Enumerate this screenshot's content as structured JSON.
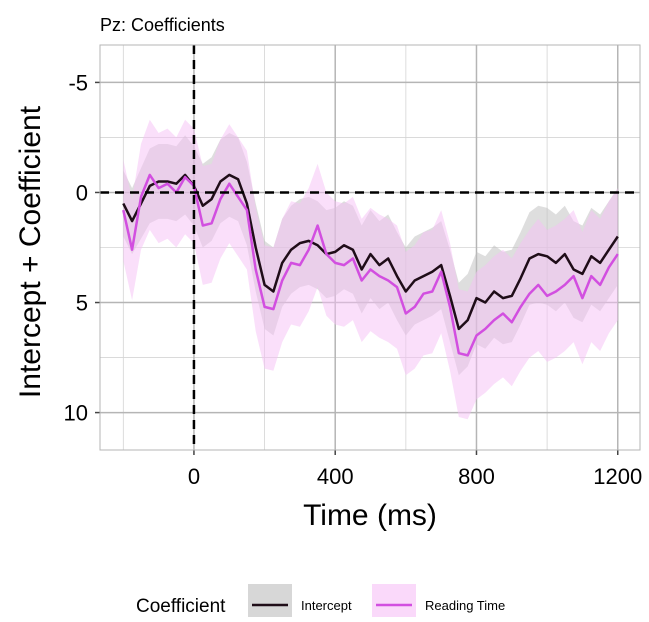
{
  "chart_data": {
    "type": "ribbon-line",
    "title": "Pz: Coefficients",
    "x_label": "Time (ms)",
    "y_label": "Intercept + Coefficient",
    "legend_title": "Coefficient",
    "y_reversed": true,
    "x": [
      -200,
      -175,
      -150,
      -125,
      -100,
      -75,
      -50,
      -25,
      0,
      25,
      50,
      75,
      100,
      125,
      150,
      175,
      200,
      225,
      250,
      275,
      300,
      325,
      350,
      375,
      400,
      425,
      450,
      475,
      500,
      525,
      550,
      575,
      600,
      625,
      650,
      675,
      700,
      725,
      750,
      775,
      800,
      825,
      850,
      875,
      900,
      925,
      950,
      975,
      1000,
      1025,
      1050,
      1075,
      1100,
      1125,
      1150,
      1175,
      1200
    ],
    "series": [
      {
        "name": "Intercept",
        "color": "#1f0d18",
        "band_color": "#bdbdbd",
        "values": [
          0.5,
          1.3,
          0.5,
          -0.3,
          -0.5,
          -0.5,
          -0.4,
          -0.8,
          -0.3,
          0.6,
          0.3,
          -0.5,
          -0.8,
          -0.6,
          0.5,
          2.5,
          4.2,
          4.5,
          3.2,
          2.6,
          2.3,
          2.2,
          2.4,
          2.8,
          2.7,
          2.4,
          2.6,
          3.5,
          2.8,
          3.3,
          3.0,
          3.8,
          4.5,
          4.0,
          3.8,
          3.6,
          3.3,
          4.7,
          6.2,
          5.8,
          4.8,
          5.0,
          4.5,
          4.8,
          4.7,
          3.9,
          3.0,
          2.8,
          2.9,
          3.2,
          2.8,
          3.5,
          3.7,
          2.9,
          3.2,
          2.6,
          2.0
        ],
        "error": [
          1.5,
          1.5,
          1.6,
          1.7,
          1.7,
          1.7,
          1.7,
          1.8,
          1.8,
          1.9,
          1.9,
          1.9,
          1.9,
          1.9,
          1.9,
          2.0,
          2.0,
          2.0,
          2.0,
          2.0,
          2.0,
          2.0,
          2.0,
          2.0,
          2.0,
          2.0,
          2.0,
          2.0,
          2.0,
          2.0,
          2.0,
          2.0,
          2.0,
          2.0,
          2.0,
          2.0,
          2.0,
          2.1,
          2.1,
          2.1,
          2.1,
          2.1,
          2.1,
          2.1,
          2.1,
          2.1,
          2.1,
          2.2,
          2.2,
          2.2,
          2.2,
          2.2,
          2.2,
          2.2,
          2.2,
          2.2,
          2.2
        ]
      },
      {
        "name": "Reading Time",
        "color": "#d24fe0",
        "band_color": "#f6bff6",
        "values": [
          0.8,
          2.6,
          0.2,
          -0.8,
          -0.2,
          -0.4,
          0,
          -0.7,
          -0.3,
          1.5,
          1.4,
          0.3,
          -0.4,
          0.2,
          0.8,
          3.5,
          5.2,
          5.3,
          4.0,
          3.2,
          3.3,
          2.6,
          1.5,
          2.8,
          3.2,
          3.3,
          3.0,
          4.0,
          3.5,
          3.8,
          4.0,
          4.3,
          5.5,
          5.2,
          4.6,
          4.5,
          3.6,
          5.2,
          7.3,
          7.4,
          6.5,
          6.2,
          5.8,
          5.5,
          5.9,
          5.2,
          4.6,
          4.2,
          4.7,
          4.5,
          4.2,
          3.8,
          4.8,
          3.8,
          4.2,
          3.4,
          2.8
        ],
        "error": [
          2.3,
          2.3,
          2.4,
          2.5,
          2.5,
          2.5,
          2.5,
          2.6,
          2.6,
          2.7,
          2.7,
          2.7,
          2.7,
          2.7,
          2.7,
          2.8,
          2.8,
          2.8,
          2.8,
          2.8,
          2.8,
          2.8,
          2.8,
          2.8,
          2.8,
          2.8,
          2.8,
          2.8,
          2.8,
          2.8,
          2.8,
          2.8,
          2.8,
          2.8,
          2.8,
          2.8,
          2.8,
          2.9,
          2.9,
          2.9,
          2.9,
          2.9,
          2.9,
          2.9,
          2.9,
          2.9,
          2.9,
          3.0,
          3.0,
          3.0,
          3.0,
          3.0,
          3.0,
          3.0,
          3.0,
          3.0,
          3.0
        ]
      }
    ],
    "xlim": [
      -266,
      1263
    ],
    "xticks": [
      0,
      400,
      800,
      1200
    ],
    "xminor": [
      -200,
      200,
      600,
      1000
    ],
    "ylim": [
      -6.7,
      11.7
    ],
    "yticks": [
      -5,
      0,
      5,
      10
    ],
    "yminor": [
      -2.5,
      2.5,
      7.5
    ],
    "hline": 0,
    "vline": 0,
    "grid": true
  }
}
